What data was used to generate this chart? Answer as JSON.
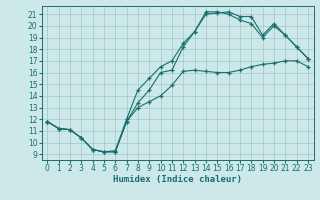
{
  "title": "",
  "xlabel": "Humidex (Indice chaleur)",
  "background_color": "#cce8e8",
  "line_color": "#1a6e6e",
  "grid_color": "#a8cccc",
  "xlim": [
    -0.5,
    23.5
  ],
  "ylim": [
    8.5,
    21.7
  ],
  "xticks": [
    0,
    1,
    2,
    3,
    4,
    5,
    6,
    7,
    8,
    9,
    10,
    11,
    12,
    13,
    14,
    15,
    16,
    17,
    18,
    19,
    20,
    21,
    22,
    23
  ],
  "yticks": [
    9,
    10,
    11,
    12,
    13,
    14,
    15,
    16,
    17,
    18,
    19,
    20,
    21
  ],
  "curve1_x": [
    0,
    1,
    2,
    3,
    4,
    5,
    6,
    7,
    8,
    9,
    10,
    11,
    12,
    13,
    14,
    15,
    16,
    17,
    18,
    19,
    20,
    21,
    22,
    23
  ],
  "curve1_y": [
    11.8,
    11.2,
    11.1,
    10.4,
    9.4,
    9.2,
    9.2,
    11.8,
    13.0,
    13.5,
    14.0,
    14.9,
    16.1,
    16.2,
    16.1,
    16.0,
    16.0,
    16.2,
    16.5,
    16.7,
    16.8,
    17.0,
    17.0,
    16.5
  ],
  "curve2_x": [
    0,
    1,
    2,
    3,
    4,
    5,
    6,
    7,
    8,
    9,
    10,
    11,
    12,
    13,
    14,
    15,
    16,
    17,
    18,
    19,
    20,
    21,
    22,
    23
  ],
  "curve2_y": [
    11.8,
    11.2,
    11.1,
    10.4,
    9.4,
    9.2,
    9.2,
    11.8,
    13.4,
    14.5,
    16.0,
    16.2,
    18.2,
    19.5,
    21.0,
    21.1,
    21.2,
    20.8,
    20.8,
    19.2,
    20.2,
    19.2,
    18.2,
    17.2
  ],
  "curve3_x": [
    0,
    1,
    2,
    3,
    4,
    5,
    6,
    7,
    8,
    9,
    10,
    11,
    12,
    13,
    14,
    15,
    16,
    17,
    18,
    19,
    20,
    21,
    22,
    23
  ],
  "curve3_y": [
    11.8,
    11.2,
    11.1,
    10.4,
    9.4,
    9.2,
    9.3,
    12.0,
    14.5,
    15.5,
    16.5,
    17.0,
    18.5,
    19.5,
    21.2,
    21.2,
    21.0,
    20.5,
    20.2,
    19.0,
    20.0,
    19.2,
    18.2,
    17.2
  ]
}
